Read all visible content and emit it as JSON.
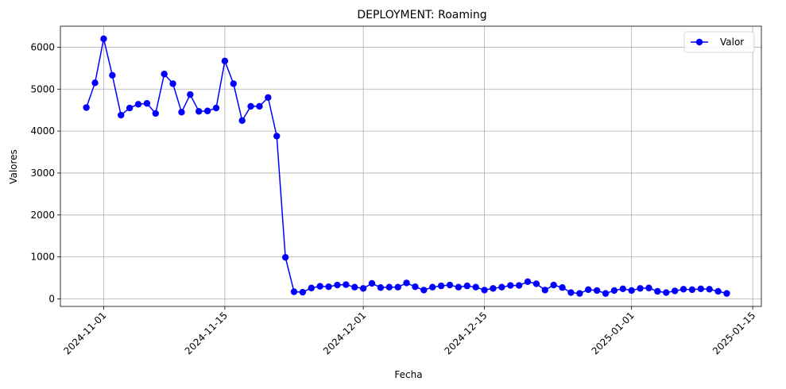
{
  "chart_data": {
    "type": "line",
    "title": "DEPLOYMENT: Roaming",
    "xlabel": "Fecha",
    "ylabel": "Valores",
    "x_ticks": [
      "2024-11-01",
      "2024-11-15",
      "2024-12-01",
      "2024-12-15",
      "2025-01-01",
      "2025-01-15"
    ],
    "y_ticks": [
      0,
      1000,
      2000,
      3000,
      4000,
      5000,
      6000
    ],
    "ylim": [
      -180,
      6500
    ],
    "xlim": [
      "2024-10-27",
      "2025-01-16"
    ],
    "grid": true,
    "legend_position": "top-right",
    "series": [
      {
        "name": "Valor",
        "color": "#0000ff",
        "marker": "circle",
        "x": [
          "2024-10-30",
          "2024-10-31",
          "2024-11-01",
          "2024-11-02",
          "2024-11-03",
          "2024-11-04",
          "2024-11-05",
          "2024-11-06",
          "2024-11-07",
          "2024-11-08",
          "2024-11-09",
          "2024-11-10",
          "2024-11-11",
          "2024-11-12",
          "2024-11-13",
          "2024-11-14",
          "2024-11-15",
          "2024-11-16",
          "2024-11-17",
          "2024-11-18",
          "2024-11-19",
          "2024-11-20",
          "2024-11-21",
          "2024-11-22",
          "2024-11-23",
          "2024-11-24",
          "2024-11-25",
          "2024-11-26",
          "2024-11-27",
          "2024-11-28",
          "2024-11-29",
          "2024-11-30",
          "2024-12-01",
          "2024-12-02",
          "2024-12-03",
          "2024-12-04",
          "2024-12-05",
          "2024-12-06",
          "2024-12-07",
          "2024-12-08",
          "2024-12-09",
          "2024-12-10",
          "2024-12-11",
          "2024-12-12",
          "2024-12-13",
          "2024-12-14",
          "2024-12-15",
          "2024-12-16",
          "2024-12-17",
          "2024-12-18",
          "2024-12-19",
          "2024-12-20",
          "2024-12-21",
          "2024-12-22",
          "2024-12-23",
          "2024-12-24",
          "2024-12-25",
          "2024-12-26",
          "2024-12-27",
          "2024-12-28",
          "2024-12-29",
          "2024-12-30",
          "2024-12-31",
          "2025-01-01",
          "2025-01-02",
          "2025-01-03",
          "2025-01-04",
          "2025-01-05",
          "2025-01-06",
          "2025-01-07",
          "2025-01-08",
          "2025-01-09",
          "2025-01-10",
          "2025-01-11",
          "2025-01-12"
        ],
        "values": [
          4560,
          5150,
          6200,
          5330,
          4380,
          4550,
          4640,
          4660,
          4420,
          5360,
          5130,
          4450,
          4870,
          4470,
          4480,
          4550,
          5670,
          5130,
          4250,
          4590,
          4590,
          4800,
          3880,
          990,
          170,
          160,
          260,
          300,
          290,
          330,
          340,
          280,
          250,
          370,
          270,
          280,
          280,
          380,
          290,
          210,
          280,
          310,
          330,
          280,
          310,
          280,
          210,
          250,
          280,
          320,
          320,
          410,
          360,
          210,
          330,
          270,
          150,
          130,
          220,
          200,
          130,
          200,
          240,
          200,
          250,
          260,
          180,
          150,
          190,
          230,
          220,
          240,
          230,
          180,
          130
        ]
      }
    ]
  }
}
